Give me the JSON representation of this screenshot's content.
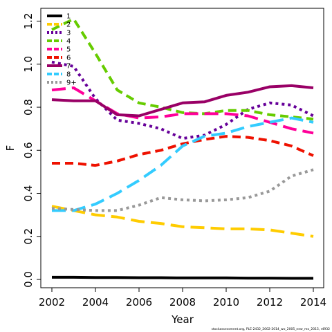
{
  "chart_data": {
    "type": "line",
    "title": "",
    "xlabel": "Year",
    "ylabel": "F",
    "xlim": [
      2002,
      2014
    ],
    "ylim": [
      0.0,
      1.25
    ],
    "x": [
      2002,
      2003,
      2004,
      2005,
      2006,
      2007,
      2008,
      2009,
      2010,
      2011,
      2012,
      2013,
      2014
    ],
    "x_ticks": [
      2002,
      2004,
      2006,
      2008,
      2010,
      2012,
      2014
    ],
    "y_ticks": [
      0.0,
      0.2,
      0.4,
      0.6,
      0.8,
      1.0,
      1.2
    ],
    "x_tick_labels": [
      "2002",
      "2004",
      "2006",
      "2008",
      "2010",
      "2012",
      "2014"
    ],
    "y_tick_labels": [
      "0.0",
      "0.2",
      "0.4",
      "0.6",
      "0.8",
      "1.0",
      "1.2"
    ],
    "grid": false,
    "legend_position": "top-left",
    "series": [
      {
        "name": "1",
        "color": "#000000",
        "dash": "solid",
        "values": [
          0.01,
          0.01,
          0.009,
          0.009,
          0.008,
          0.008,
          0.007,
          0.007,
          0.007,
          0.006,
          0.006,
          0.005,
          0.005
        ]
      },
      {
        "name": "2",
        "color": "#FFCC00",
        "dash": "longdash",
        "values": [
          0.34,
          0.32,
          0.3,
          0.29,
          0.27,
          0.26,
          0.245,
          0.24,
          0.235,
          0.235,
          0.23,
          0.215,
          0.2
        ]
      },
      {
        "name": "3",
        "color": "#660099",
        "dash": "dot",
        "values": [
          1.01,
          0.99,
          0.84,
          0.74,
          0.725,
          0.7,
          0.655,
          0.67,
          0.72,
          0.79,
          0.82,
          0.81,
          0.76
        ]
      },
      {
        "name": "4",
        "color": "#66CC00",
        "dash": "dash",
        "values": [
          1.16,
          1.21,
          1.05,
          0.88,
          0.82,
          0.8,
          0.775,
          0.77,
          0.785,
          0.785,
          0.765,
          0.755,
          0.745
        ]
      },
      {
        "name": "5",
        "color": "#FF0099",
        "dash": "longdash",
        "values": [
          0.88,
          0.89,
          0.83,
          0.77,
          0.75,
          0.755,
          0.77,
          0.77,
          0.77,
          0.76,
          0.73,
          0.7,
          0.68
        ]
      },
      {
        "name": "6",
        "color": "#EE1100",
        "dash": "dash",
        "values": [
          0.54,
          0.54,
          0.53,
          0.55,
          0.58,
          0.6,
          0.63,
          0.65,
          0.665,
          0.66,
          0.645,
          0.62,
          0.575
        ]
      },
      {
        "name": "7",
        "color": "#990066",
        "dash": "solid",
        "values": [
          0.835,
          0.83,
          0.83,
          0.765,
          0.76,
          0.79,
          0.82,
          0.825,
          0.855,
          0.87,
          0.895,
          0.9,
          0.89
        ]
      },
      {
        "name": "8",
        "color": "#33CCFF",
        "dash": "longdash",
        "values": [
          0.32,
          0.32,
          0.35,
          0.4,
          0.46,
          0.53,
          0.62,
          0.665,
          0.68,
          0.71,
          0.73,
          0.75,
          0.73
        ]
      },
      {
        "name": "9+",
        "color": "#999999",
        "dash": "dot",
        "values": [
          0.33,
          0.325,
          0.32,
          0.32,
          0.345,
          0.38,
          0.37,
          0.365,
          0.37,
          0.38,
          0.41,
          0.48,
          0.51
        ]
      }
    ]
  },
  "footer": {
    "note": "stockassessment.org, PLE-2432_2002-2014_wo_2005_new_mo_2015, r4932"
  }
}
